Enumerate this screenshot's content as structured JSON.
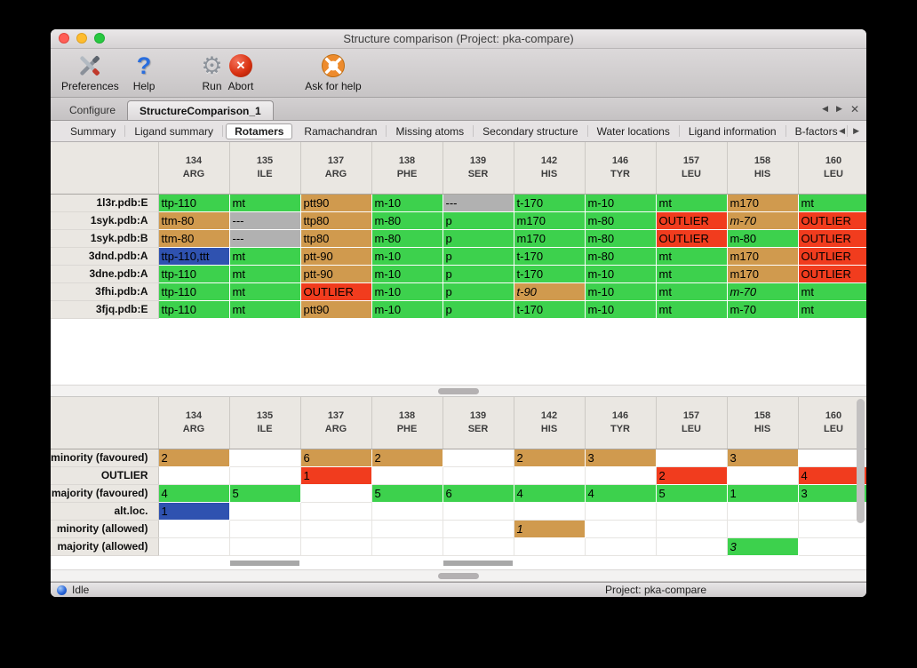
{
  "window": {
    "title": "Structure comparison (Project: pka-compare)",
    "toolbar": [
      {
        "label": "Preferences",
        "icon": "preferences-icon"
      },
      {
        "label": "Help",
        "icon": "help-icon"
      },
      {
        "label": "Run",
        "icon": "run-icon"
      },
      {
        "label": "Abort",
        "icon": "abort-icon"
      },
      {
        "label": "Ask for help",
        "icon": "ask-for-help-icon"
      }
    ],
    "tabs": [
      {
        "label": "Configure",
        "active": false
      },
      {
        "label": "StructureComparison_1",
        "active": true
      }
    ],
    "tab_nav": {
      "prev": "◀",
      "next": "▶",
      "close": "✕"
    },
    "subtabs": [
      "Summary",
      "Ligand summary",
      "Rotamers",
      "Ramachandran",
      "Missing atoms",
      "Secondary structure",
      "Water locations",
      "Ligand information",
      "B-factors"
    ],
    "active_subtab": "Rotamers",
    "statusbar": {
      "status": "Idle",
      "project": "Project: pka-compare"
    }
  },
  "palette": {
    "green": "#3dd14d",
    "orange": "#d09a4e",
    "red": "#f13c1e",
    "gray": "#b1b1b1",
    "blue": "#2f52b0",
    "header_bg": "#eae7e2"
  },
  "columns": [
    {
      "num": "134",
      "res": "ARG"
    },
    {
      "num": "135",
      "res": "ILE"
    },
    {
      "num": "137",
      "res": "ARG"
    },
    {
      "num": "138",
      "res": "PHE"
    },
    {
      "num": "139",
      "res": "SER"
    },
    {
      "num": "142",
      "res": "HIS"
    },
    {
      "num": "146",
      "res": "TYR"
    },
    {
      "num": "157",
      "res": "LEU"
    },
    {
      "num": "158",
      "res": "HIS"
    },
    {
      "num": "160",
      "res": "LEU"
    }
  ],
  "top_table": {
    "rows": [
      {
        "label": "1l3r.pdb:E",
        "cells": [
          {
            "t": "ttp-110",
            "c": "green"
          },
          {
            "t": "mt",
            "c": "green"
          },
          {
            "t": "ptt90",
            "c": "orange"
          },
          {
            "t": "m-10",
            "c": "green"
          },
          {
            "t": "---",
            "c": "gray"
          },
          {
            "t": "t-170",
            "c": "green"
          },
          {
            "t": "m-10",
            "c": "green"
          },
          {
            "t": "mt",
            "c": "green"
          },
          {
            "t": "m170",
            "c": "orange"
          },
          {
            "t": "mt",
            "c": "green"
          }
        ]
      },
      {
        "label": "1syk.pdb:A",
        "cells": [
          {
            "t": "ttm-80",
            "c": "orange"
          },
          {
            "t": "---",
            "c": "gray"
          },
          {
            "t": "ttp80",
            "c": "orange"
          },
          {
            "t": "m-80",
            "c": "green"
          },
          {
            "t": "p",
            "c": "green"
          },
          {
            "t": "m170",
            "c": "green"
          },
          {
            "t": "m-80",
            "c": "green"
          },
          {
            "t": "OUTLIER",
            "c": "red"
          },
          {
            "t": "m-70",
            "c": "orange",
            "i": true
          },
          {
            "t": "OUTLIER",
            "c": "red"
          }
        ]
      },
      {
        "label": "1syk.pdb:B",
        "cells": [
          {
            "t": "ttm-80",
            "c": "orange"
          },
          {
            "t": "---",
            "c": "gray"
          },
          {
            "t": "ttp80",
            "c": "orange"
          },
          {
            "t": "m-80",
            "c": "green"
          },
          {
            "t": "p",
            "c": "green"
          },
          {
            "t": "m170",
            "c": "green"
          },
          {
            "t": "m-80",
            "c": "green"
          },
          {
            "t": "OUTLIER",
            "c": "red"
          },
          {
            "t": "m-80",
            "c": "green"
          },
          {
            "t": "OUTLIER",
            "c": "red"
          }
        ]
      },
      {
        "label": "3dnd.pdb:A",
        "cells": [
          {
            "t": "ttp-110,ttt",
            "c": "blue"
          },
          {
            "t": "mt",
            "c": "green"
          },
          {
            "t": "ptt-90",
            "c": "orange"
          },
          {
            "t": "m-10",
            "c": "green"
          },
          {
            "t": "p",
            "c": "green"
          },
          {
            "t": "t-170",
            "c": "green"
          },
          {
            "t": "m-80",
            "c": "green"
          },
          {
            "t": "mt",
            "c": "green"
          },
          {
            "t": "m170",
            "c": "orange"
          },
          {
            "t": "OUTLIER",
            "c": "red"
          }
        ]
      },
      {
        "label": "3dne.pdb:A",
        "cells": [
          {
            "t": "ttp-110",
            "c": "green"
          },
          {
            "t": "mt",
            "c": "green"
          },
          {
            "t": "ptt-90",
            "c": "orange"
          },
          {
            "t": "m-10",
            "c": "green"
          },
          {
            "t": "p",
            "c": "green"
          },
          {
            "t": "t-170",
            "c": "green"
          },
          {
            "t": "m-10",
            "c": "green"
          },
          {
            "t": "mt",
            "c": "green"
          },
          {
            "t": "m170",
            "c": "orange"
          },
          {
            "t": "OUTLIER",
            "c": "red"
          }
        ]
      },
      {
        "label": "3fhi.pdb:A",
        "cells": [
          {
            "t": "ttp-110",
            "c": "green"
          },
          {
            "t": "mt",
            "c": "green"
          },
          {
            "t": "OUTLIER",
            "c": "red"
          },
          {
            "t": "m-10",
            "c": "green"
          },
          {
            "t": "p",
            "c": "green"
          },
          {
            "t": "t-90",
            "c": "orange",
            "i": true
          },
          {
            "t": "m-10",
            "c": "green"
          },
          {
            "t": "mt",
            "c": "green"
          },
          {
            "t": "m-70",
            "c": "green",
            "i": true
          },
          {
            "t": "mt",
            "c": "green"
          }
        ]
      },
      {
        "label": "3fjq.pdb:E",
        "cells": [
          {
            "t": "ttp-110",
            "c": "green"
          },
          {
            "t": "mt",
            "c": "green"
          },
          {
            "t": "ptt90",
            "c": "orange"
          },
          {
            "t": "m-10",
            "c": "green"
          },
          {
            "t": "p",
            "c": "green"
          },
          {
            "t": "t-170",
            "c": "green"
          },
          {
            "t": "m-10",
            "c": "green"
          },
          {
            "t": "mt",
            "c": "green"
          },
          {
            "t": "m-70",
            "c": "green"
          },
          {
            "t": "mt",
            "c": "green"
          }
        ]
      }
    ]
  },
  "bottom_table": {
    "rows": [
      {
        "label": "minority (favoured)",
        "cells": [
          {
            "t": "2",
            "c": "orange"
          },
          {},
          {
            "t": "6",
            "c": "orange"
          },
          {
            "t": "2",
            "c": "orange"
          },
          {},
          {
            "t": "2",
            "c": "orange"
          },
          {
            "t": "3",
            "c": "orange"
          },
          {},
          {
            "t": "3",
            "c": "orange"
          },
          {}
        ]
      },
      {
        "label": "OUTLIER",
        "cells": [
          {},
          {},
          {
            "t": "1",
            "c": "red"
          },
          {},
          {},
          {},
          {},
          {
            "t": "2",
            "c": "red"
          },
          {},
          {
            "t": "4",
            "c": "red"
          }
        ]
      },
      {
        "label": "majority (favoured)",
        "cells": [
          {
            "t": "4",
            "c": "green"
          },
          {
            "t": "5",
            "c": "green"
          },
          {},
          {
            "t": "5",
            "c": "green"
          },
          {
            "t": "6",
            "c": "green"
          },
          {
            "t": "4",
            "c": "green"
          },
          {
            "t": "4",
            "c": "green"
          },
          {
            "t": "5",
            "c": "green"
          },
          {
            "t": "1",
            "c": "green"
          },
          {
            "t": "3",
            "c": "green"
          }
        ]
      },
      {
        "label": "alt.loc.",
        "cells": [
          {
            "t": "1",
            "c": "blue"
          },
          {},
          {},
          {},
          {},
          {},
          {},
          {},
          {},
          {}
        ]
      },
      {
        "label": "minority (allowed)",
        "cells": [
          {},
          {},
          {},
          {},
          {},
          {
            "t": "1",
            "c": "orange",
            "i": true
          },
          {},
          {},
          {},
          {}
        ]
      },
      {
        "label": "majority (allowed)",
        "cells": [
          {},
          {},
          {},
          {},
          {},
          {},
          {},
          {},
          {
            "t": "3",
            "c": "green",
            "i": true
          },
          {}
        ]
      }
    ]
  }
}
